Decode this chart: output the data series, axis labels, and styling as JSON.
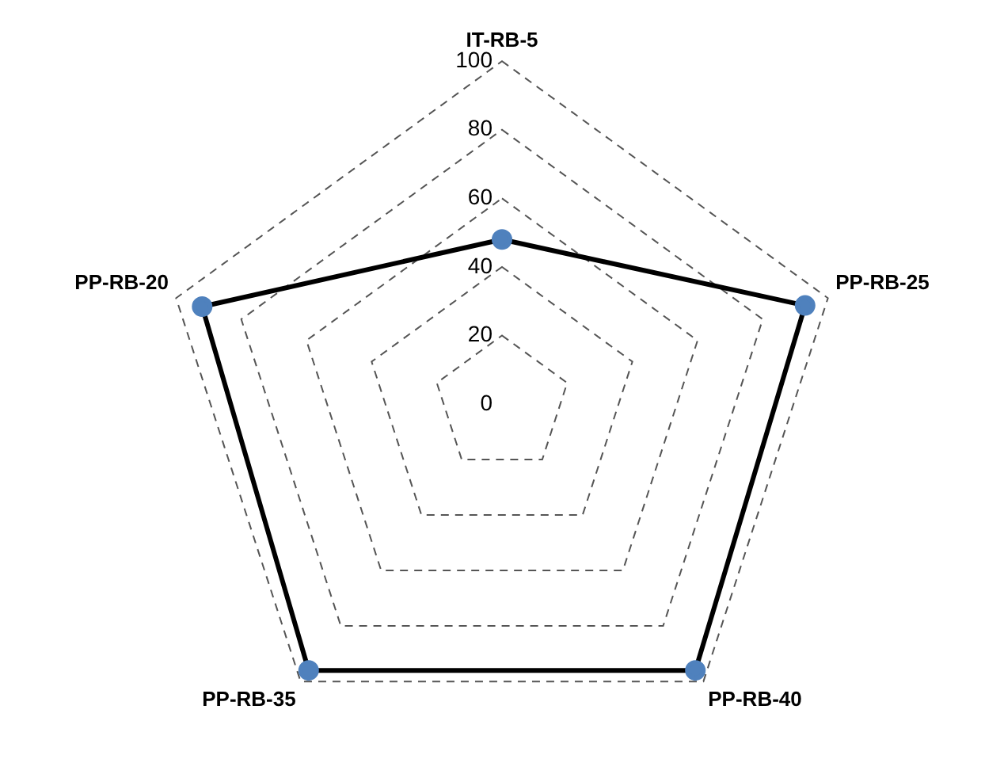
{
  "chart_data": {
    "type": "radar",
    "categories": [
      "IT-RB-5",
      "PP-RB-25",
      "PP-RB-40",
      "PP-RB-35",
      "PP-RB-20"
    ],
    "series": [
      {
        "color": "#000000",
        "values": [
          48,
          93,
          96,
          96,
          92
        ]
      }
    ],
    "ylim": [
      0,
      100
    ],
    "yticks": [
      0,
      20,
      40,
      60,
      80,
      100
    ],
    "grid": true,
    "legend": false,
    "marker": "circle"
  }
}
